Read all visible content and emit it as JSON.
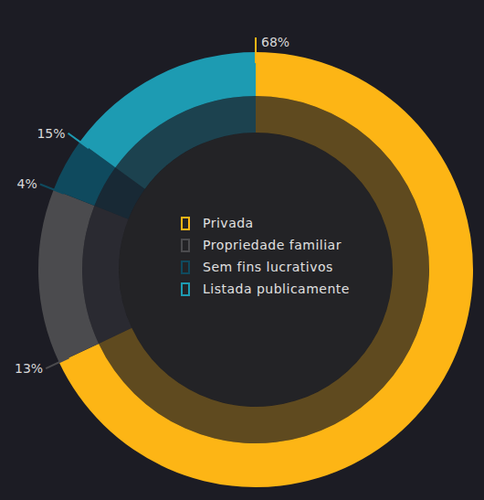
{
  "chart_data": {
    "type": "pie",
    "categories": [
      "Privada",
      "Propriedade familiar",
      "Sem fins lucrativos",
      "Listada publicamente"
    ],
    "values": [
      68,
      13,
      4,
      15
    ],
    "value_labels": [
      "68%",
      "13%",
      "4%",
      "15%"
    ],
    "colors": [
      "#fdb515",
      "#4b4b4e",
      "#0f4a5e",
      "#1d9bb2"
    ],
    "data_labels": true,
    "legend": "center"
  }
}
